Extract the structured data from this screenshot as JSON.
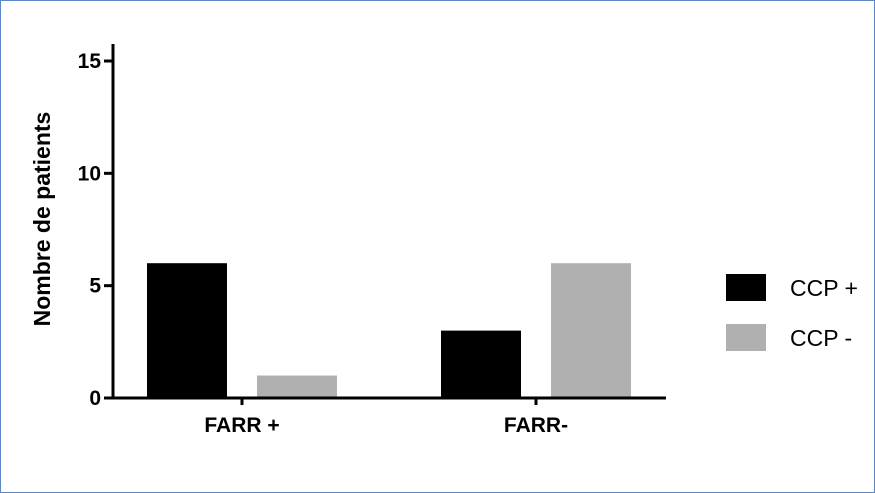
{
  "chart_data": {
    "type": "bar",
    "title": "",
    "xlabel": "",
    "ylabel": "Nombre de patients",
    "ylim": [
      0,
      16
    ],
    "yticks": [
      0,
      5,
      10,
      15
    ],
    "categories": [
      "FARR +",
      "FARR-"
    ],
    "series": [
      {
        "name": "CCP +",
        "color": "#000000",
        "values": [
          6,
          3
        ]
      },
      {
        "name": "CCP -",
        "color": "#b0b0b0",
        "values": [
          1,
          6
        ]
      }
    ],
    "legend_position": "right",
    "grid": false
  },
  "colors": {
    "frame_border": "#5b86c8",
    "axis": "#000000"
  }
}
